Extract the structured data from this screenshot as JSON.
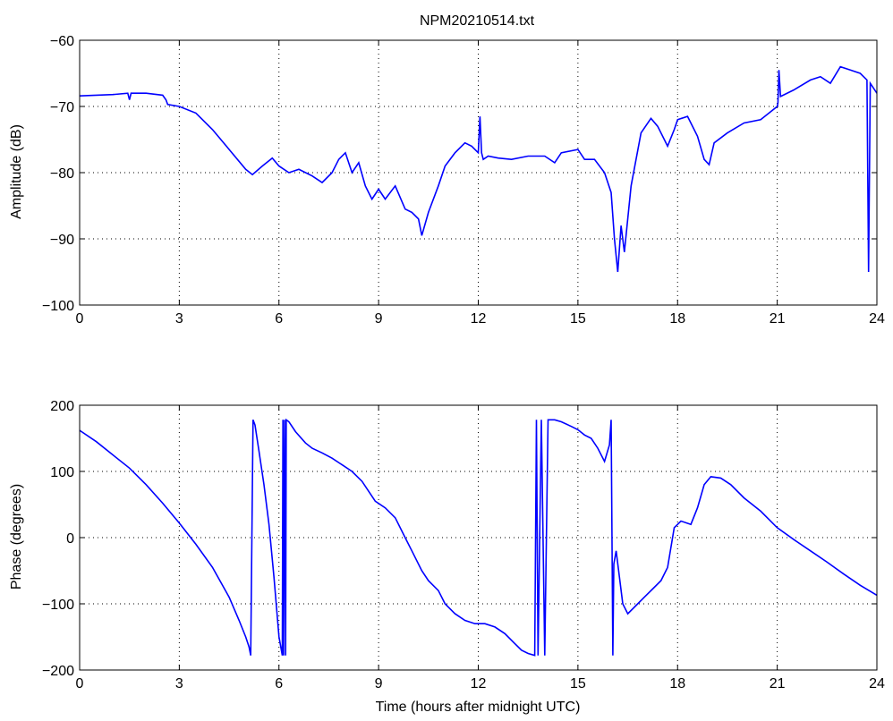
{
  "chart_data": [
    {
      "type": "line",
      "title": "NPM20210514.txt",
      "xlabel": "",
      "ylabel": "Amplitude (dB)",
      "xlim": [
        0,
        24
      ],
      "ylim": [
        -100,
        -60
      ],
      "xticks": [
        "0",
        "3",
        "6",
        "9",
        "12",
        "15",
        "18",
        "21",
        "24"
      ],
      "yticks": [
        "−60",
        "−70",
        "−80",
        "−90",
        "−100"
      ],
      "grid": true,
      "line_color": "#0000ff",
      "series": [
        {
          "x": [
            0,
            0.5,
            1.0,
            1.45,
            1.5,
            1.55,
            2.0,
            2.5,
            2.6,
            2.65,
            3.0,
            3.5,
            4.0,
            4.5,
            5.0,
            5.2,
            5.5,
            5.8,
            6.0,
            6.3,
            6.6,
            7.0,
            7.3,
            7.6,
            7.8,
            8.0,
            8.2,
            8.4,
            8.6,
            8.8,
            9.0,
            9.2,
            9.5,
            9.8,
            10.0,
            10.2,
            10.3,
            10.5,
            10.8,
            11.0,
            11.3,
            11.6,
            11.8,
            12.0,
            12.05,
            12.1,
            12.15,
            12.3,
            12.6,
            13.0,
            13.5,
            14.0,
            14.3,
            14.5,
            15.0,
            15.2,
            15.5,
            15.8,
            16.0,
            16.1,
            16.2,
            16.3,
            16.4,
            16.6,
            16.9,
            17.2,
            17.4,
            17.7,
            17.9,
            18.0,
            18.3,
            18.6,
            18.8,
            18.95,
            19.1,
            19.5,
            20.0,
            20.5,
            21.0,
            21.02,
            21.05,
            21.1,
            21.5,
            22.0,
            22.3,
            22.6,
            22.9,
            23.2,
            23.5,
            23.7,
            23.75,
            23.8,
            24.0
          ],
          "y": [
            -68.4,
            -68.3,
            -68.2,
            -68.0,
            -69.0,
            -68.0,
            -68.0,
            -68.3,
            -69.0,
            -69.7,
            -70.0,
            -71.0,
            -73.5,
            -76.5,
            -79.5,
            -80.3,
            -79.0,
            -77.8,
            -79.0,
            -80.0,
            -79.5,
            -80.5,
            -81.5,
            -80.0,
            -78.0,
            -77.0,
            -80.0,
            -78.5,
            -82.0,
            -84.0,
            -82.5,
            -84.0,
            -82.0,
            -85.5,
            -86.0,
            -87.0,
            -89.5,
            -86.0,
            -82.0,
            -79.0,
            -77.0,
            -75.5,
            -76.0,
            -77.0,
            -71.5,
            -77.0,
            -78.0,
            -77.5,
            -77.8,
            -78.0,
            -77.5,
            -77.5,
            -78.5,
            -77.0,
            -76.5,
            -78.0,
            -78.0,
            -80.0,
            -83.0,
            -90.0,
            -95.0,
            -88.0,
            -92.0,
            -82.0,
            -74.0,
            -71.8,
            -73.0,
            -76.0,
            -73.5,
            -72.0,
            -71.5,
            -74.5,
            -78.0,
            -78.8,
            -75.5,
            -74.0,
            -72.5,
            -72.0,
            -70.0,
            -69.5,
            -64.5,
            -68.5,
            -67.5,
            -66.0,
            -65.5,
            -66.5,
            -64.0,
            -64.5,
            -65.0,
            -66.0,
            -95.0,
            -66.5,
            -68.0
          ]
        }
      ]
    },
    {
      "type": "line",
      "title": "",
      "xlabel": "Time (hours after midnight UTC)",
      "ylabel": "Phase (degrees)",
      "xlim": [
        0,
        24
      ],
      "ylim": [
        -200,
        200
      ],
      "xticks": [
        "0",
        "3",
        "6",
        "9",
        "12",
        "15",
        "18",
        "21",
        "24"
      ],
      "yticks": [
        "200",
        "100",
        "0",
        "−100",
        "−200"
      ],
      "grid": true,
      "line_color": "#0000ff",
      "series": [
        {
          "x": [
            0,
            0.5,
            1.0,
            1.5,
            2.0,
            2.5,
            3.0,
            3.5,
            4.0,
            4.5,
            4.8,
            5.0,
            5.1,
            5.15,
            5.22,
            5.28,
            5.4,
            5.55,
            5.7,
            5.85,
            6.0,
            6.1,
            6.12,
            6.14,
            6.17,
            6.2,
            6.22,
            6.3,
            6.5,
            6.8,
            7.0,
            7.3,
            7.6,
            7.9,
            8.2,
            8.5,
            8.7,
            8.9,
            9.2,
            9.5,
            9.8,
            10.0,
            10.3,
            10.5,
            10.8,
            11.0,
            11.3,
            11.6,
            11.9,
            12.2,
            12.5,
            12.8,
            13.1,
            13.3,
            13.5,
            13.7,
            13.75,
            13.8,
            13.9,
            14.0,
            14.1,
            14.2,
            14.3,
            14.5,
            14.8,
            15.0,
            15.2,
            15.4,
            15.6,
            15.8,
            15.95,
            16.0,
            16.05,
            16.08,
            16.15,
            16.25,
            16.35,
            16.5,
            16.8,
            17.0,
            17.3,
            17.5,
            17.7,
            17.9,
            18.1,
            18.4,
            18.6,
            18.8,
            19.0,
            19.3,
            19.6,
            20.0,
            20.5,
            21.0,
            21.5,
            22.0,
            22.5,
            23.0,
            23.5,
            24.0
          ],
          "y": [
            162,
            145,
            125,
            105,
            80,
            52,
            22,
            -10,
            -45,
            -90,
            -125,
            -150,
            -165,
            -178,
            178,
            170,
            130,
            80,
            20,
            -60,
            -150,
            -178,
            178,
            -178,
            178,
            -178,
            178,
            175,
            160,
            143,
            135,
            128,
            120,
            110,
            100,
            85,
            70,
            55,
            45,
            30,
            0,
            -20,
            -50,
            -65,
            -80,
            -100,
            -115,
            -125,
            -130,
            -130,
            -135,
            -145,
            -160,
            -170,
            -175,
            -178,
            178,
            -178,
            178,
            -178,
            178,
            178,
            178,
            175,
            168,
            163,
            155,
            150,
            135,
            115,
            140,
            178,
            -178,
            -40,
            -20,
            -60,
            -100,
            -115,
            -100,
            -90,
            -75,
            -65,
            -45,
            15,
            25,
            20,
            45,
            80,
            92,
            90,
            80,
            60,
            40,
            15,
            -3,
            -20,
            -37,
            -55,
            -72,
            -87
          ]
        }
      ]
    }
  ]
}
